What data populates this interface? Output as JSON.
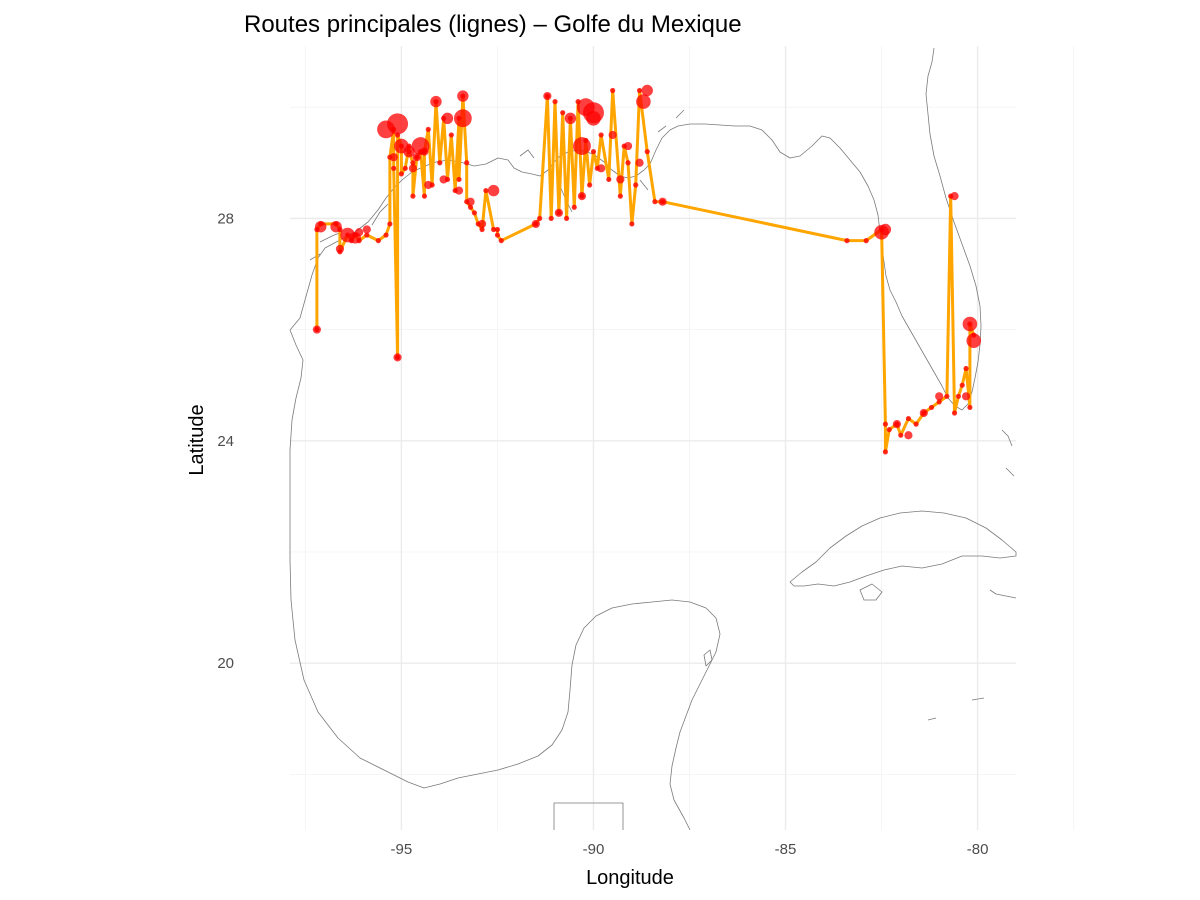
{
  "chart_data": {
    "type": "line",
    "title": "Routes principales (lignes) – Golfe du Mexique",
    "xlabel": "Longitude",
    "ylabel": "Latitude",
    "xlim": [
      -97.9,
      -79.0
    ],
    "ylim": [
      17.0,
      31.1
    ],
    "x_ticks": [
      -95,
      -90,
      -85,
      -80
    ],
    "x_tick_labels": [
      "-95",
      "-90",
      "-85",
      "-80"
    ],
    "y_ticks": [
      20,
      24,
      28
    ],
    "y_tick_labels": [
      "20",
      "24",
      "28"
    ],
    "grid": true,
    "legend": "none",
    "colors": {
      "route_line": "#ffa500",
      "port_point": "#ff0000",
      "coastline": "#7a7a7a",
      "grid": "#ebebeb"
    },
    "route": {
      "lon": [
        -97.2,
        -97.2,
        -97.1,
        -96.7,
        -96.6,
        -96.6,
        -96.4,
        -96.3,
        -96.2,
        -96.1,
        -95.9,
        -95.6,
        -95.4,
        -95.3,
        -95.3,
        -95.2,
        -95.2,
        -95.1,
        -95.1,
        -95.0,
        -95.0,
        -94.9,
        -94.8,
        -94.8,
        -94.7,
        -94.7,
        -94.6,
        -94.5,
        -94.4,
        -94.4,
        -94.3,
        -94.2,
        -94.1,
        -94.0,
        -93.9,
        -93.8,
        -93.7,
        -93.6,
        -93.5,
        -93.5,
        -93.4,
        -93.3,
        -93.3,
        -93.2,
        -93.1,
        -93.0,
        -92.9,
        -92.8,
        -92.6,
        -92.5,
        -92.5,
        -92.4,
        -91.5,
        -91.4,
        -91.2,
        -91.1,
        -91.0,
        -90.9,
        -90.8,
        -90.7,
        -90.6,
        -90.5,
        -90.4,
        -90.3,
        -90.2,
        -90.1,
        -90.0,
        -89.9,
        -89.8,
        -89.6,
        -89.5,
        -89.3,
        -89.2,
        -89.1,
        -89.0,
        -88.9,
        -88.8,
        -88.6,
        -88.4,
        -88.2,
        -83.4,
        -82.9,
        -82.5,
        -82.4,
        -82.4,
        -82.3,
        -82.1,
        -82.0,
        -81.8,
        -81.6,
        -81.4,
        -81.2,
        -81.0,
        -80.8,
        -80.7,
        -80.6,
        -80.5,
        -80.4,
        -80.3,
        -80.2,
        -80.2,
        -80.1
      ],
      "lat": [
        26.0,
        27.8,
        27.9,
        27.9,
        27.8,
        27.4,
        27.7,
        27.6,
        27.7,
        27.6,
        27.7,
        27.6,
        27.7,
        27.9,
        29.1,
        29.6,
        28.9,
        25.5,
        29.5,
        29.3,
        28.8,
        28.9,
        29.3,
        29.2,
        29.0,
        28.4,
        29.1,
        29.2,
        28.4,
        29.2,
        29.6,
        28.6,
        30.1,
        29.0,
        29.8,
        28.7,
        29.5,
        28.5,
        29.8,
        28.7,
        30.2,
        29.0,
        28.3,
        28.2,
        28.1,
        27.9,
        27.8,
        28.5,
        27.8,
        27.8,
        27.7,
        27.6,
        27.9,
        28.0,
        30.2,
        28.0,
        30.1,
        28.1,
        29.9,
        28.0,
        29.8,
        28.2,
        30.1,
        28.4,
        29.4,
        28.6,
        29.2,
        28.9,
        29.5,
        28.7,
        30.3,
        28.4,
        29.3,
        29.0,
        27.9,
        28.6,
        30.3,
        29.2,
        28.3,
        28.3,
        27.6,
        27.6,
        27.8,
        24.3,
        23.8,
        24.2,
        24.3,
        24.1,
        24.4,
        24.3,
        24.5,
        24.6,
        24.7,
        24.8,
        28.4,
        24.5,
        24.8,
        25.0,
        25.3,
        24.6,
        26.1,
        25.9
      ]
    },
    "ports": {
      "lon": [
        -97.2,
        -97.1,
        -96.7,
        -96.6,
        -96.4,
        -96.2,
        -96.1,
        -95.9,
        -95.4,
        -95.2,
        -95.1,
        -95.0,
        -94.8,
        -94.7,
        -94.6,
        -94.4,
        -94.3,
        -94.1,
        -93.9,
        -93.8,
        -93.5,
        -93.4,
        -93.2,
        -92.9,
        -92.6,
        -91.5,
        -91.2,
        -90.9,
        -90.6,
        -90.3,
        -90.0,
        -89.8,
        -89.5,
        -89.3,
        -89.1,
        -88.8,
        -88.6,
        -88.2,
        -82.5,
        -82.4,
        -82.1,
        -81.8,
        -81.4,
        -81.0,
        -80.6,
        -80.3,
        -80.2,
        -80.1
      ],
      "lat": [
        26.0,
        27.85,
        27.85,
        27.45,
        27.7,
        27.65,
        27.75,
        27.8,
        29.6,
        29.1,
        25.5,
        29.3,
        29.2,
        28.9,
        29.1,
        29.2,
        28.6,
        30.1,
        28.7,
        29.8,
        28.5,
        30.2,
        28.3,
        27.9,
        28.5,
        27.9,
        30.2,
        28.1,
        29.8,
        28.4,
        29.8,
        28.9,
        29.5,
        28.7,
        29.3,
        29.0,
        30.3,
        28.3,
        27.75,
        27.8,
        24.3,
        24.1,
        24.5,
        24.8,
        28.4,
        24.8,
        26.1,
        25.8
      ],
      "size": [
        1,
        2,
        2,
        1,
        3,
        2,
        1,
        1,
        4,
        1,
        1,
        3,
        2,
        1,
        1,
        1,
        1,
        2,
        1,
        2,
        1,
        2,
        1,
        1,
        2,
        1,
        1,
        1,
        2,
        1,
        3,
        1,
        1,
        1,
        1,
        1,
        2,
        1,
        3,
        2,
        1,
        1,
        1,
        1,
        1,
        1,
        3,
        3
      ]
    },
    "big_ports": {
      "lon": [
        -95.1,
        -94.5,
        -93.4,
        -90.3,
        -90.0,
        -90.2,
        -88.7
      ],
      "lat": [
        29.7,
        29.3,
        29.8,
        29.3,
        29.9,
        30.0,
        30.1
      ],
      "size": [
        5,
        4,
        4,
        4,
        5,
        4,
        3
      ]
    }
  }
}
